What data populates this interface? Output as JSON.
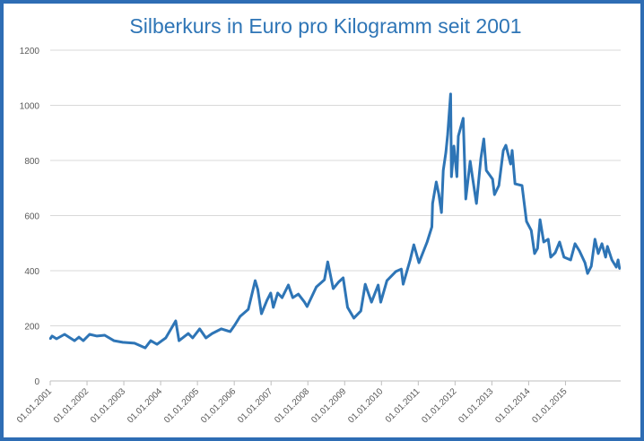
{
  "chart_data": {
    "type": "line",
    "title": "Silberkurs in Euro pro Kilogramm seit 2001",
    "xlabel": "",
    "ylabel": "",
    "ylim": [
      0,
      1200
    ],
    "xlim": [
      2001,
      2016.5
    ],
    "yticks": [
      0,
      200,
      400,
      600,
      800,
      1000,
      1200
    ],
    "xticks": [
      {
        "x": 2001,
        "label": "01.01.2001"
      },
      {
        "x": 2002,
        "label": "01.01.2002"
      },
      {
        "x": 2003,
        "label": "01.01.2003"
      },
      {
        "x": 2004,
        "label": "01.01.2004"
      },
      {
        "x": 2005,
        "label": "01.01.2005"
      },
      {
        "x": 2006,
        "label": "01.01.2006"
      },
      {
        "x": 2007,
        "label": "01.01.2007"
      },
      {
        "x": 2008,
        "label": "01.01.2008"
      },
      {
        "x": 2009,
        "label": "01.01.2009"
      },
      {
        "x": 2010,
        "label": "01.01.2010"
      },
      {
        "x": 2011,
        "label": "01.01.2011"
      },
      {
        "x": 2012,
        "label": "01.01.2012"
      },
      {
        "x": 2013,
        "label": "01.01.2013"
      },
      {
        "x": 2014,
        "label": "01.01.2014"
      },
      {
        "x": 2015,
        "label": "01.01.2015"
      }
    ],
    "grid": true,
    "legend": "none",
    "color": "#2E75B6",
    "series": [
      {
        "x": [
          2001.0,
          2001.05,
          2001.17,
          2001.39,
          2001.66,
          2001.78,
          2001.9,
          2002.07,
          2002.27,
          2002.48,
          2002.73,
          2002.97,
          2003.29,
          2003.58,
          2003.73,
          2003.9,
          2004.14,
          2004.24,
          2004.41,
          2004.5,
          2004.75,
          2004.87,
          2005.06,
          2005.23,
          2005.4,
          2005.65,
          2005.89,
          2006.01,
          2006.16,
          2006.38,
          2006.57,
          2006.64,
          2006.74,
          2006.89,
          2006.99,
          2007.06,
          2007.18,
          2007.3,
          2007.47,
          2007.59,
          2007.74,
          2007.91,
          2007.98,
          2008.23,
          2008.45,
          2008.54,
          2008.69,
          2008.83,
          2008.96,
          2009.08,
          2009.25,
          2009.44,
          2009.56,
          2009.73,
          2009.91,
          2009.98,
          2010.15,
          2010.39,
          2010.54,
          2010.59,
          2010.78,
          2010.88,
          2011.02,
          2011.24,
          2011.37,
          2011.39,
          2011.49,
          2011.56,
          2011.63,
          2011.68,
          2011.75,
          2011.8,
          2011.88,
          2011.9,
          2011.97,
          2012.05,
          2012.09,
          2012.22,
          2012.29,
          2012.41,
          2012.48,
          2012.58,
          2012.7,
          2012.78,
          2012.85,
          2013.02,
          2013.07,
          2013.19,
          2013.31,
          2013.38,
          2013.51,
          2013.55,
          2013.63,
          2013.82,
          2013.94,
          2014.07,
          2014.16,
          2014.24,
          2014.31,
          2014.41,
          2014.53,
          2014.6,
          2014.72,
          2014.84,
          2014.96,
          2015.14,
          2015.26,
          2015.38,
          2015.53,
          2015.6,
          2015.7,
          2015.8,
          2015.89,
          2015.99,
          2016.09,
          2016.14,
          2016.26,
          2016.38,
          2016.43,
          2016.47
        ],
        "y": [
          153,
          163,
          153,
          169,
          146,
          159,
          146,
          169,
          163,
          166,
          146,
          140,
          137,
          120,
          146,
          133,
          156,
          179,
          218,
          146,
          172,
          156,
          189,
          156,
          172,
          189,
          179,
          202,
          234,
          260,
          364,
          332,
          244,
          293,
          319,
          267,
          319,
          302,
          348,
          302,
          315,
          286,
          270,
          341,
          367,
          432,
          335,
          358,
          374,
          267,
          228,
          254,
          351,
          286,
          348,
          286,
          364,
          397,
          406,
          351,
          439,
          494,
          429,
          504,
          559,
          644,
          722,
          676,
          611,
          764,
          829,
          894,
          1041,
          741,
          852,
          741,
          888,
          953,
          660,
          797,
          732,
          644,
          807,
          878,
          764,
          732,
          676,
          709,
          836,
          855,
          787,
          836,
          715,
          709,
          579,
          546,
          462,
          481,
          585,
          504,
          514,
          449,
          465,
          504,
          449,
          439,
          498,
          472,
          429,
          390,
          416,
          514,
          462,
          498,
          449,
          488,
          439,
          413,
          439,
          407
        ]
      }
    ]
  }
}
